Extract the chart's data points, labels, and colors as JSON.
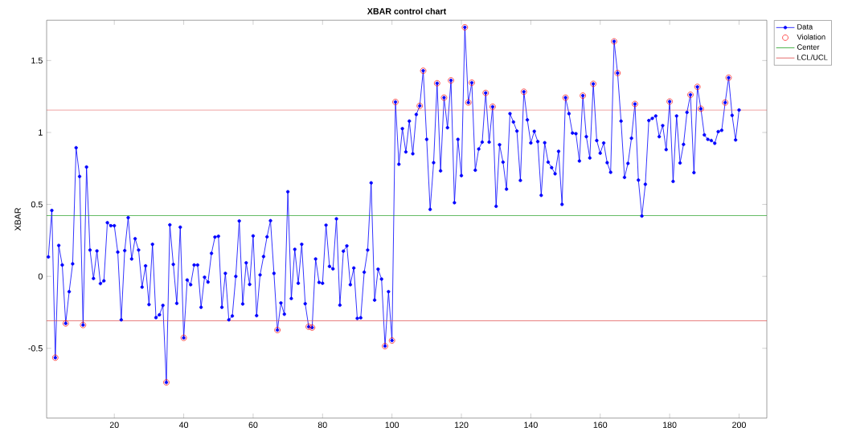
{
  "chart_data": {
    "type": "line",
    "title": "XBAR control chart",
    "ylabel": "XBAR",
    "xlim": [
      0.5,
      208
    ],
    "ylim": [
      -0.985,
      1.78
    ],
    "xticks": [
      20,
      40,
      60,
      80,
      100,
      120,
      140,
      160,
      180,
      200
    ],
    "yticks": [
      -0.5,
      0,
      0.5,
      1,
      1.5
    ],
    "grid": false,
    "legend": "top right",
    "x": [
      1,
      2,
      3,
      4,
      5,
      6,
      7,
      8,
      9,
      10,
      11,
      12,
      13,
      14,
      15,
      16,
      17,
      18,
      19,
      20,
      21,
      22,
      23,
      24,
      25,
      26,
      27,
      28,
      29,
      30,
      31,
      32,
      33,
      34,
      35,
      36,
      37,
      38,
      39,
      40,
      41,
      42,
      43,
      44,
      45,
      46,
      47,
      48,
      49,
      50,
      51,
      52,
      53,
      54,
      55,
      56,
      57,
      58,
      59,
      60,
      61,
      62,
      63,
      64,
      65,
      66,
      67,
      68,
      69,
      70,
      71,
      72,
      73,
      74,
      75,
      76,
      77,
      78,
      79,
      80,
      81,
      82,
      83,
      84,
      85,
      86,
      87,
      88,
      89,
      90,
      91,
      92,
      93,
      94,
      95,
      96,
      97,
      98,
      99,
      100,
      101,
      102,
      103,
      104,
      105,
      106,
      107,
      108,
      109,
      110,
      111,
      112,
      113,
      114,
      115,
      116,
      117,
      118,
      119,
      120,
      121,
      122,
      123,
      124,
      125,
      126,
      127,
      128,
      129,
      130,
      131,
      132,
      133,
      134,
      135,
      136,
      137,
      138,
      139,
      140,
      141,
      142,
      143,
      144,
      145,
      146,
      147,
      148,
      149,
      150,
      151,
      152,
      153,
      154,
      155,
      156,
      157,
      158,
      159,
      160,
      161,
      162,
      163,
      164,
      165,
      166,
      167,
      168,
      169,
      170,
      171,
      172,
      173,
      174,
      175,
      176,
      177,
      178,
      179,
      180,
      181,
      182,
      183,
      184,
      185,
      186,
      187,
      188,
      189,
      190,
      191,
      192,
      193,
      194,
      195,
      196,
      197,
      198,
      199,
      200
    ],
    "series": [
      {
        "name": "Data",
        "color": "#0000ff",
        "marker": "circle",
        "line_style": "solid",
        "values": [
          0.135,
          0.458,
          -0.565,
          0.215,
          0.079,
          -0.327,
          -0.106,
          0.087,
          0.894,
          0.694,
          -0.338,
          0.76,
          0.183,
          -0.015,
          0.177,
          -0.05,
          -0.031,
          0.373,
          0.352,
          0.352,
          0.169,
          -0.302,
          0.179,
          0.408,
          0.121,
          0.262,
          0.183,
          -0.075,
          0.073,
          -0.196,
          0.223,
          -0.287,
          -0.267,
          -0.202,
          -0.737,
          0.358,
          0.083,
          -0.188,
          0.342,
          -0.427,
          -0.025,
          -0.058,
          0.079,
          0.079,
          -0.215,
          -0.006,
          -0.04,
          0.16,
          0.273,
          0.279,
          -0.215,
          0.021,
          -0.302,
          -0.275,
          0.0,
          0.385,
          -0.192,
          0.094,
          -0.056,
          0.281,
          -0.273,
          0.01,
          0.138,
          0.275,
          0.387,
          0.021,
          -0.373,
          -0.185,
          -0.263,
          0.588,
          -0.154,
          0.188,
          -0.048,
          0.223,
          -0.19,
          -0.35,
          -0.356,
          0.121,
          -0.042,
          -0.048,
          0.356,
          0.069,
          0.052,
          0.4,
          -0.2,
          0.175,
          0.212,
          -0.058,
          0.058,
          -0.292,
          -0.288,
          0.029,
          0.183,
          0.65,
          -0.165,
          0.05,
          -0.019,
          -0.485,
          -0.106,
          -0.446,
          1.212,
          0.779,
          1.027,
          0.865,
          1.079,
          0.852,
          1.125,
          1.185,
          1.429,
          0.952,
          0.465,
          0.79,
          1.342,
          0.733,
          1.242,
          1.033,
          1.362,
          0.512,
          0.952,
          0.7,
          1.731,
          1.208,
          1.346,
          0.738,
          0.885,
          0.933,
          1.275,
          0.933,
          1.179,
          0.487,
          0.915,
          0.794,
          0.606,
          1.131,
          1.073,
          1.01,
          0.667,
          1.283,
          1.088,
          0.927,
          1.008,
          0.937,
          0.563,
          0.929,
          0.794,
          0.756,
          0.713,
          0.869,
          0.5,
          1.242,
          1.131,
          0.996,
          0.992,
          0.802,
          1.256,
          0.971,
          0.823,
          1.338,
          0.944,
          0.856,
          0.927,
          0.79,
          0.723,
          1.633,
          1.413,
          1.079,
          0.688,
          0.785,
          0.96,
          1.198,
          0.669,
          0.419,
          0.64,
          1.083,
          1.098,
          1.115,
          0.971,
          1.048,
          0.881,
          1.215,
          0.66,
          1.115,
          0.788,
          0.917,
          1.14,
          1.262,
          0.721,
          1.317,
          1.165,
          0.983,
          0.952,
          0.944,
          0.925,
          1.006,
          1.015,
          1.208,
          1.381,
          1.119,
          0.948,
          1.156
        ]
      },
      {
        "name": "Violation",
        "type": "scatter",
        "color": "#ff0000",
        "marker": "circle",
        "x": [
          3,
          6,
          11,
          35,
          40,
          67,
          76,
          77,
          98,
          100,
          101,
          108,
          109,
          113,
          115,
          117,
          121,
          122,
          123,
          127,
          129,
          138,
          150,
          155,
          158,
          164,
          165,
          170,
          180,
          186,
          188,
          189,
          196,
          197
        ],
        "values": [
          -0.565,
          -0.327,
          -0.338,
          -0.737,
          -0.427,
          -0.373,
          -0.35,
          -0.356,
          -0.485,
          -0.446,
          1.212,
          1.185,
          1.429,
          1.342,
          1.242,
          1.362,
          1.731,
          1.208,
          1.346,
          1.275,
          1.179,
          1.283,
          1.242,
          1.256,
          1.338,
          1.633,
          1.413,
          1.198,
          1.215,
          1.262,
          1.317,
          1.165,
          1.208,
          1.381
        ]
      }
    ],
    "ref_lines": [
      {
        "axis": "y",
        "value": 0.423,
        "label": "Center",
        "color": "#22a022"
      },
      {
        "axis": "y",
        "value": -0.308,
        "label": "LCL/UCL",
        "color": "#e04848"
      },
      {
        "axis": "y",
        "value": 1.156,
        "color": "#e04848"
      }
    ]
  }
}
